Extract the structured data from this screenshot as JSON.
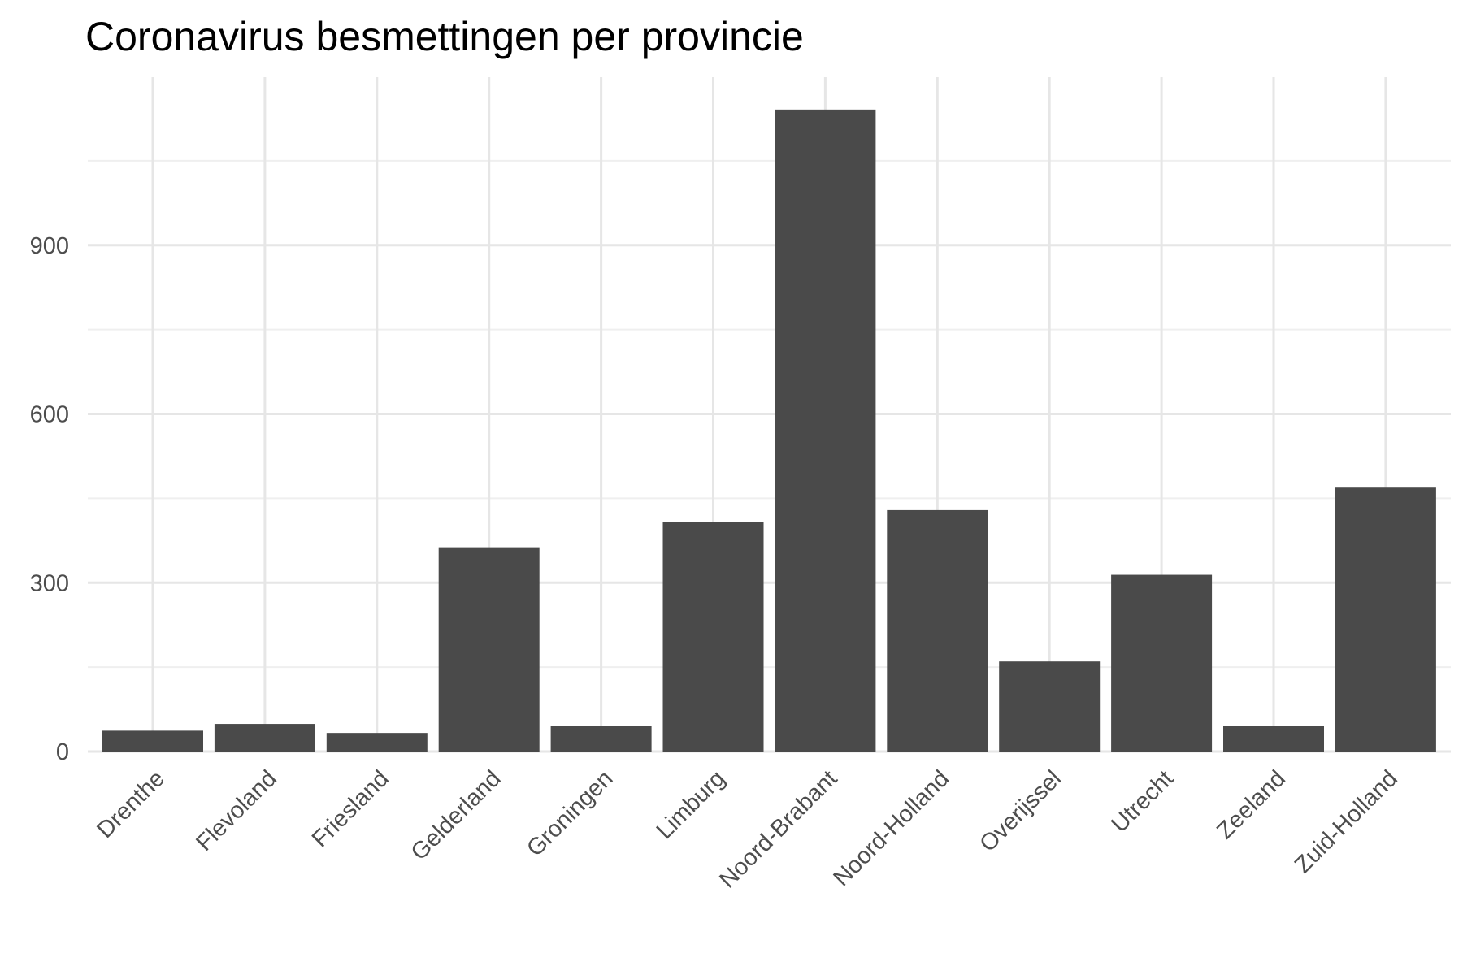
{
  "chart_data": {
    "type": "bar",
    "title": "Coronavirus besmettingen per provincie",
    "xlabel": "",
    "ylabel": "",
    "categories": [
      "Drenthe",
      "Flevoland",
      "Friesland",
      "Gelderland",
      "Groningen",
      "Limburg",
      "Noord-Brabant",
      "Noord-Holland",
      "Overijssel",
      "Utrecht",
      "Zeeland",
      "Zuid-Holland"
    ],
    "values": [
      37,
      49,
      33,
      363,
      46,
      408,
      1141,
      429,
      160,
      314,
      46,
      469
    ],
    "ylim": [
      0,
      1200
    ],
    "yticks": [
      0,
      300,
      600,
      900
    ],
    "ytick_labels": [
      "0",
      "300",
      "600",
      "900"
    ],
    "grid": true,
    "bar_color": "#4a4a4a"
  }
}
